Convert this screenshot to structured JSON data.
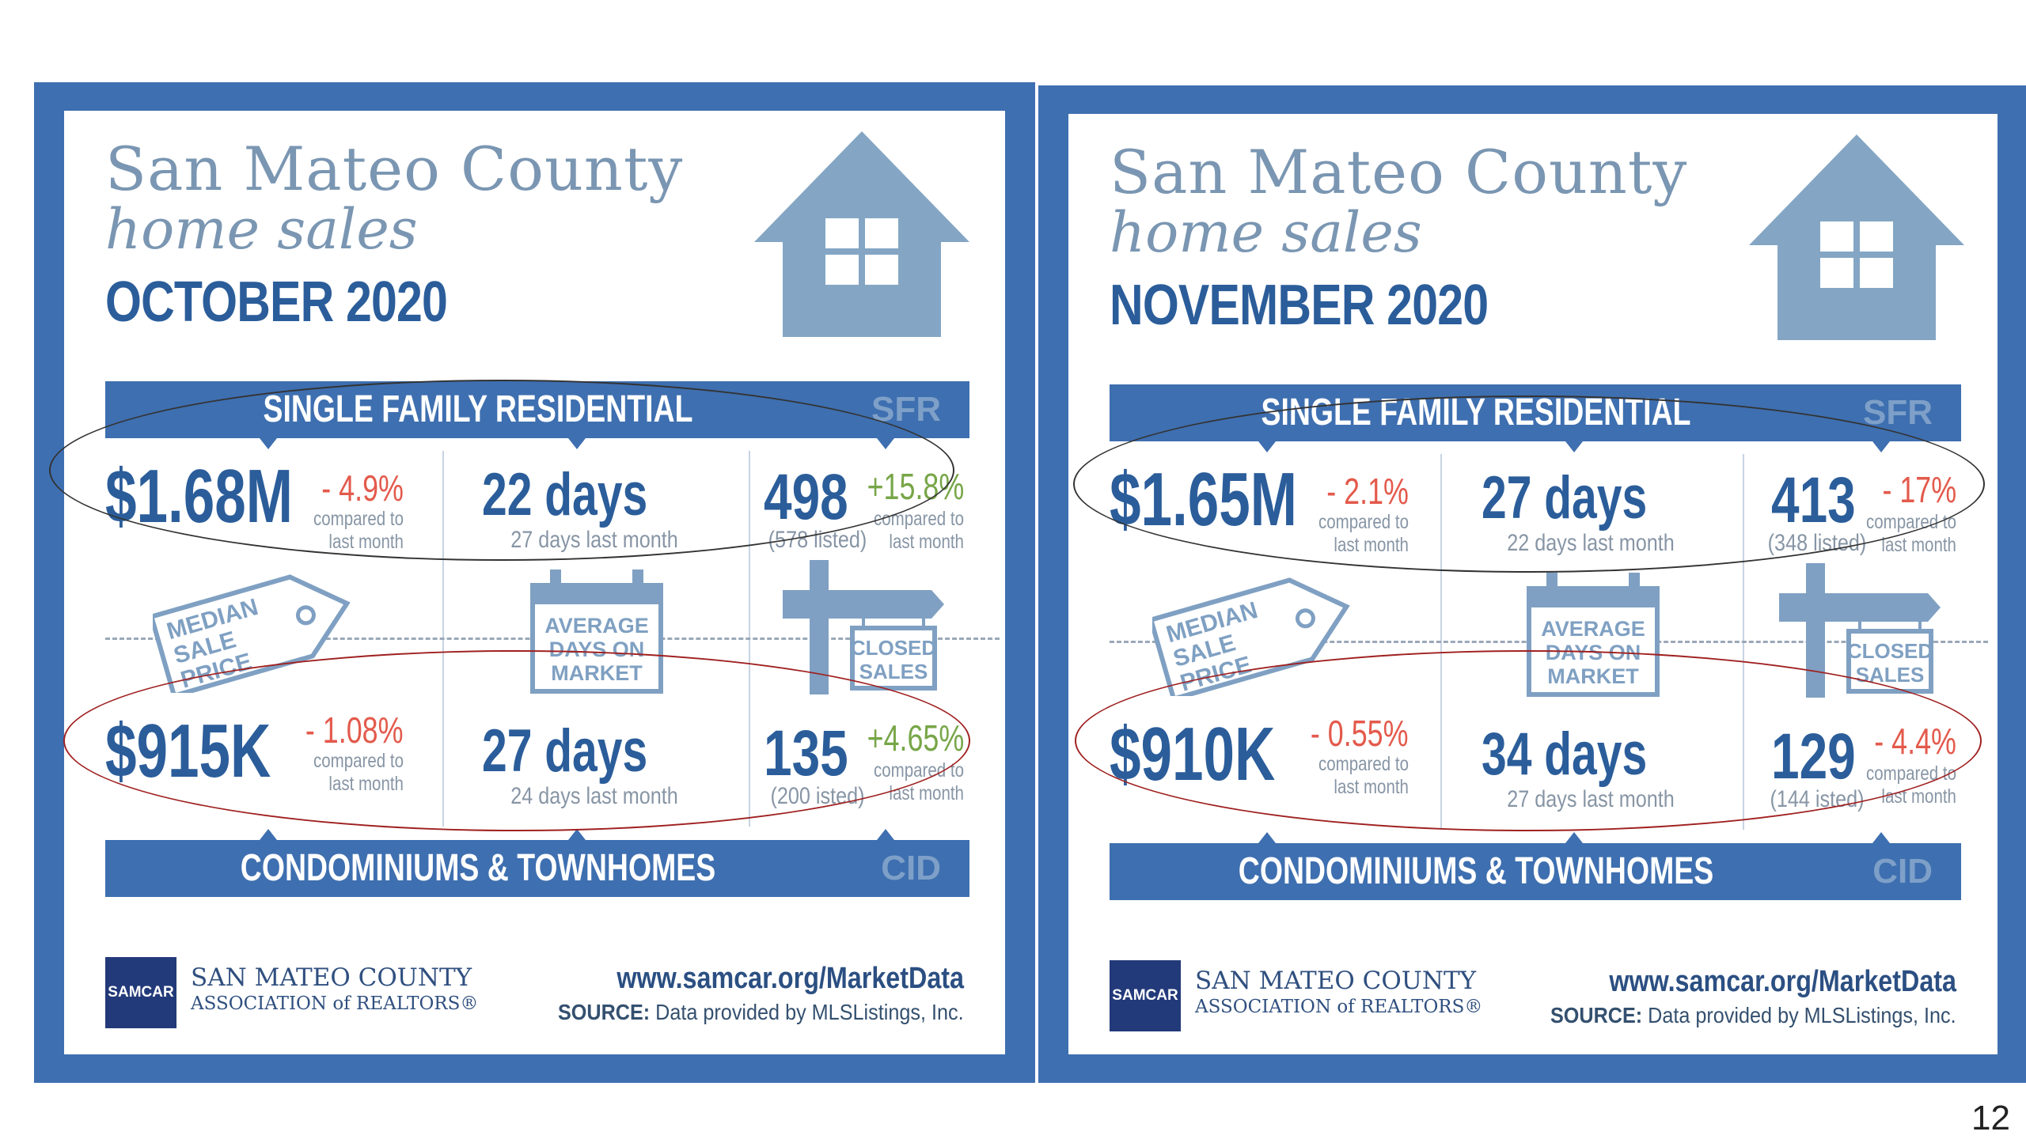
{
  "panels": [
    {
      "title_line1": "San Mateo County",
      "title_line2": "home sales",
      "month": "OCTOBER 2020",
      "sfr_band": "SINGLE FAMILY RESIDENTIAL",
      "sfr_code": "SFR",
      "cid_band": "CONDOMINIUMS & TOWNHOMES",
      "cid_code": "CID",
      "sfr": {
        "price": "$1.68M",
        "price_change": "- 4.9%",
        "price_note1": "compared to",
        "price_note2": "last month",
        "days": "22 days",
        "days_last": "27 days last month",
        "sales": "498",
        "sales_listed": "(578 listed)",
        "sales_change": "+15.8%",
        "sales_note1": "compared to",
        "sales_note2": "last month"
      },
      "cid": {
        "price": "$915K",
        "price_change": "- 1.08%",
        "price_note1": "compared to",
        "price_note2": "last month",
        "days": "27 days",
        "days_last": "24 days last month",
        "sales": "135",
        "sales_listed": "(200 isted)",
        "sales_change": "+4.65%",
        "sales_note1": "compared to",
        "sales_note2": "last month"
      },
      "tag_text": [
        "MEDIAN",
        "SALE",
        "PRICE"
      ],
      "calendar_text": [
        "AVERAGE",
        "DAYS ON",
        "MARKET"
      ],
      "sign_text": [
        "CLOSED",
        "SALES"
      ],
      "logo": "SAMCAR",
      "org_line1": "SAN MATEO COUNTY",
      "org_line2": "ASSOCIATION of REALTORS®",
      "url": "www.samcar.org/MarketData",
      "source_label": "SOURCE:",
      "source_text": " Data provided by MLSListings, Inc."
    },
    {
      "title_line1": "San Mateo County",
      "title_line2": "home sales",
      "month": "NOVEMBER 2020",
      "sfr_band": "SINGLE FAMILY RESIDENTIAL",
      "sfr_code": "SFR",
      "cid_band": "CONDOMINIUMS & TOWNHOMES",
      "cid_code": "CID",
      "sfr": {
        "price": "$1.65M",
        "price_change": "- 2.1%",
        "price_note1": "compared to",
        "price_note2": "last month",
        "days": "27 days",
        "days_last": "22 days last month",
        "sales": "413",
        "sales_listed": "(348 listed)",
        "sales_change": "- 17%",
        "sales_note1": "compared to",
        "sales_note2": "last month"
      },
      "cid": {
        "price": "$910K",
        "price_change": "- 0.55%",
        "price_note1": "compared to",
        "price_note2": "last month",
        "days": "34 days",
        "days_last": "27 days last month",
        "sales": "129",
        "sales_listed": "(144 isted)",
        "sales_change": "- 4.4%",
        "sales_note1": "compared to",
        "sales_note2": "last month"
      },
      "tag_text": [
        "MEDIAN",
        "SALE",
        "PRICE"
      ],
      "calendar_text": [
        "AVERAGE",
        "DAYS ON",
        "MARKET"
      ],
      "sign_text": [
        "CLOSED",
        "SALES"
      ],
      "logo": "SAMCAR",
      "org_line1": "SAN MATEO COUNTY",
      "org_line2": "ASSOCIATION of REALTORS®",
      "url": "www.samcar.org/MarketData",
      "source_label": "SOURCE:",
      "source_text": " Data provided by MLSListings, Inc."
    }
  ],
  "colors": {
    "frame": "#3e6fb0",
    "title": "#7a96b2",
    "value": "#2b5d9a",
    "negative": "#e35a4c",
    "positive": "#77a648",
    "ellipse_top": "#333333",
    "ellipse_bottom": "#a02020"
  },
  "page_number": "12"
}
